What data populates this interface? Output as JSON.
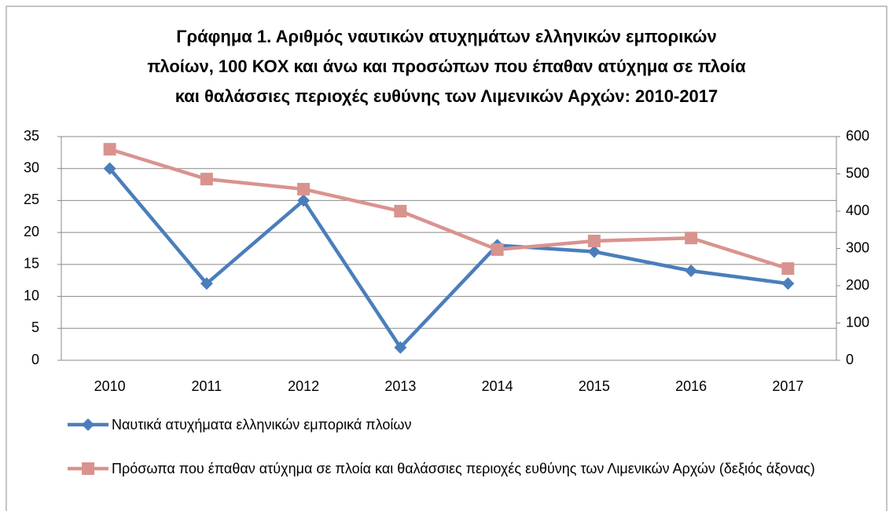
{
  "chart_data": {
    "type": "line",
    "title": [
      "Γράφημα 1. Αριθμός ναυτικών ατυχημάτων ελληνικών εμπορικών",
      "πλοίων, 100 ΚΟΧ και άνω και προσώπων που έπαθαν ατύχημα σε πλοία",
      "και θαλάσσιες περιοχές ευθύνης των Λιμενικών Αρχών: 2010-2017"
    ],
    "categories": [
      "2010",
      "2011",
      "2012",
      "2013",
      "2014",
      "2015",
      "2016",
      "2017"
    ],
    "series": [
      {
        "name": "Ναυτικά ατυχήματα ελληνικών εμπορικά πλοίων",
        "color": "#4a7ebb",
        "marker": "diamond",
        "values": [
          30,
          12,
          25,
          2,
          18,
          17,
          14,
          12
        ]
      },
      {
        "name": "Πρόσωπα που έπαθαν ατύχημα σε πλοία και θαλάσσιες περιοχές ευθύνης των Λιμενικών Αρχών (δεξιός άξονας)",
        "color": "#d9938f",
        "marker": "square",
        "axis": "y2",
        "values": [
          566,
          486,
          459,
          400,
          297,
          320,
          328,
          246
        ]
      }
    ],
    "ylim": [
      0,
      35
    ],
    "yticks": [
      0,
      5,
      10,
      15,
      20,
      25,
      30,
      35
    ],
    "y2lim": [
      0,
      600
    ],
    "y2ticks": [
      0,
      100,
      200,
      300,
      400,
      500,
      600
    ],
    "grid": true,
    "legend": "bottom"
  }
}
